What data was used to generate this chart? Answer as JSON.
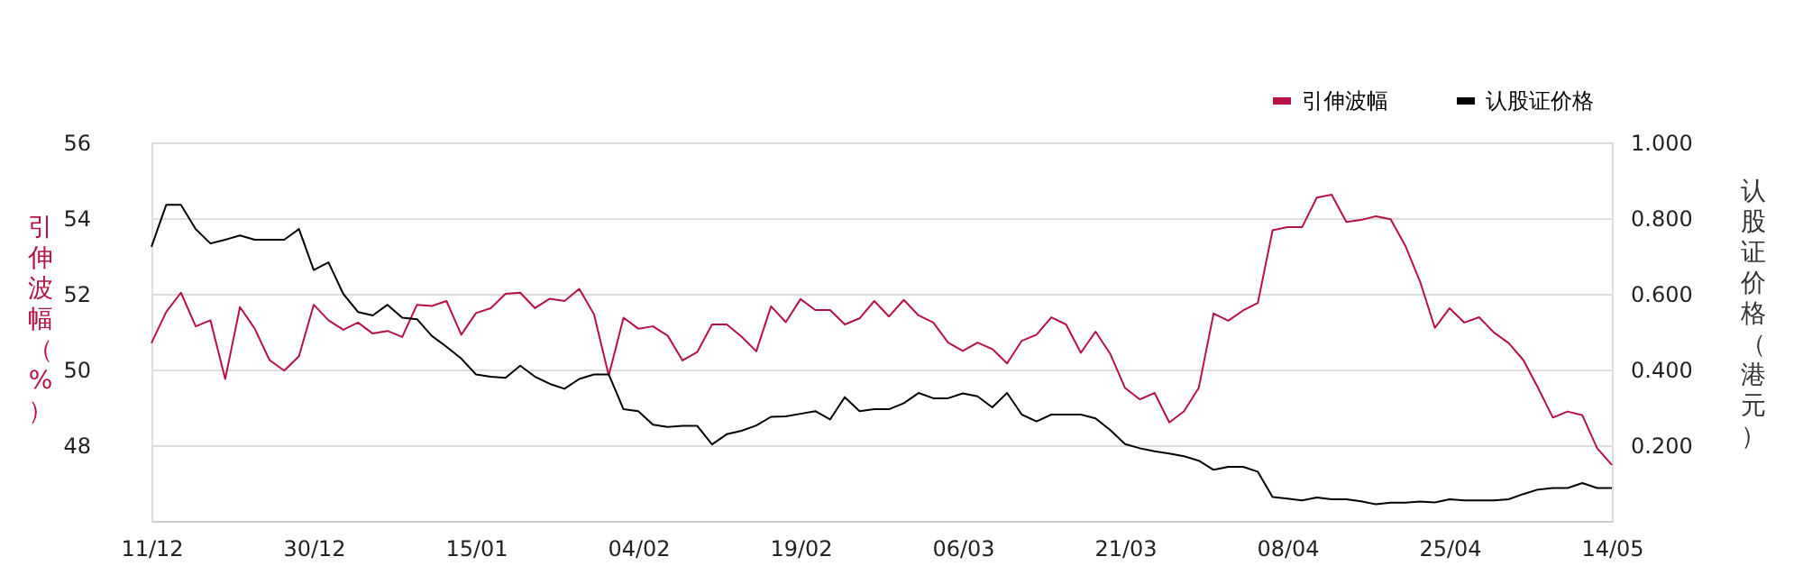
{
  "chart_data": {
    "type": "line",
    "ylabel": "引伸波幅（%）",
    "y2label": "认股证价格（港元）",
    "categories": [
      "11/12",
      null,
      null,
      null,
      null,
      null,
      null,
      null,
      null,
      null,
      null,
      "30/12",
      null,
      null,
      null,
      null,
      null,
      null,
      null,
      null,
      null,
      null,
      "15/01",
      null,
      null,
      null,
      null,
      null,
      null,
      null,
      null,
      null,
      null,
      "04/02",
      null,
      null,
      null,
      null,
      null,
      null,
      null,
      null,
      null,
      null,
      "19/02",
      null,
      null,
      null,
      null,
      null,
      null,
      null,
      null,
      null,
      null,
      "06/03",
      null,
      null,
      null,
      null,
      null,
      null,
      null,
      null,
      null,
      null,
      "21/03",
      null,
      null,
      null,
      null,
      null,
      null,
      null,
      null,
      null,
      null,
      "08/04",
      null,
      null,
      null,
      null,
      null,
      null,
      null,
      null,
      null,
      null,
      "25/04",
      null,
      null,
      null,
      null,
      null,
      null,
      null,
      null,
      null,
      null,
      "14/05"
    ],
    "series": [
      {
        "name": "引伸波幅",
        "color": "#b5123f",
        "values": [
          50.7,
          51.52,
          52.03,
          51.14,
          51.3,
          49.75,
          51.65,
          51.08,
          50.25,
          49.97,
          50.35,
          51.71,
          51.3,
          51.05,
          51.24,
          50.95,
          51.02,
          50.86,
          51.71,
          51.68,
          51.81,
          50.92,
          51.49,
          51.62,
          52.0,
          52.03,
          51.62,
          51.87,
          51.81,
          52.13,
          51.46,
          49.84,
          51.37,
          51.08,
          51.14,
          50.89,
          50.24,
          50.46,
          51.19,
          51.19,
          50.87,
          50.48,
          51.67,
          51.25,
          51.86,
          51.57,
          51.57,
          51.19,
          51.35,
          51.81,
          51.4,
          51.84,
          51.43,
          51.24,
          50.71,
          50.49,
          50.71,
          50.54,
          50.16,
          50.76,
          50.92,
          51.38,
          51.19,
          50.44,
          51.0,
          50.41,
          49.51,
          49.21,
          49.38,
          48.6,
          48.9,
          49.52,
          51.48,
          51.29,
          51.56,
          51.76,
          53.68,
          53.76,
          53.76,
          54.54,
          54.62,
          53.9,
          53.95,
          54.05,
          53.97,
          53.27,
          52.32,
          51.1,
          51.62,
          51.24,
          51.38,
          50.98,
          50.7,
          50.25,
          49.51,
          48.73,
          48.89,
          48.79,
          47.92,
          47.48
        ]
      },
      {
        "name": "认股证价格",
        "color": "#000000",
        "axis": "y2",
        "values": [
          0.724,
          0.835,
          0.835,
          0.771,
          0.733,
          0.743,
          0.754,
          0.743,
          0.743,
          0.743,
          0.771,
          0.663,
          0.683,
          0.6,
          0.552,
          0.543,
          0.571,
          0.537,
          0.533,
          0.489,
          0.46,
          0.429,
          0.387,
          0.381,
          0.378,
          0.41,
          0.381,
          0.362,
          0.349,
          0.375,
          0.387,
          0.387,
          0.295,
          0.29,
          0.254,
          0.248,
          0.251,
          0.251,
          0.202,
          0.229,
          0.238,
          0.252,
          0.275,
          0.276,
          0.283,
          0.29,
          0.268,
          0.327,
          0.29,
          0.295,
          0.295,
          0.311,
          0.338,
          0.324,
          0.324,
          0.337,
          0.329,
          0.3,
          0.338,
          0.281,
          0.263,
          0.281,
          0.281,
          0.281,
          0.271,
          0.24,
          0.203,
          0.192,
          0.184,
          0.178,
          0.171,
          0.159,
          0.135,
          0.143,
          0.143,
          0.13,
          0.063,
          0.059,
          0.054,
          0.062,
          0.057,
          0.057,
          0.052,
          0.044,
          0.048,
          0.048,
          0.051,
          0.049,
          0.057,
          0.054,
          0.054,
          0.054,
          0.057,
          0.071,
          0.083,
          0.087,
          0.087,
          0.1,
          0.087,
          0.087
        ]
      }
    ],
    "ylim": [
      46,
      56
    ],
    "yticks": [
      48,
      50,
      52,
      54,
      56
    ],
    "y2lim": [
      0,
      1
    ],
    "y2ticks": [
      {
        "value": 0.2,
        "label": "0.200"
      },
      {
        "value": 0.4,
        "label": "0.400"
      },
      {
        "value": 0.6,
        "label": "0.600"
      },
      {
        "value": 0.8,
        "label": "0.800"
      },
      {
        "value": 1.0,
        "label": "1.000"
      }
    ],
    "grid": "y",
    "legend": "top right",
    "line_style": "solid"
  }
}
